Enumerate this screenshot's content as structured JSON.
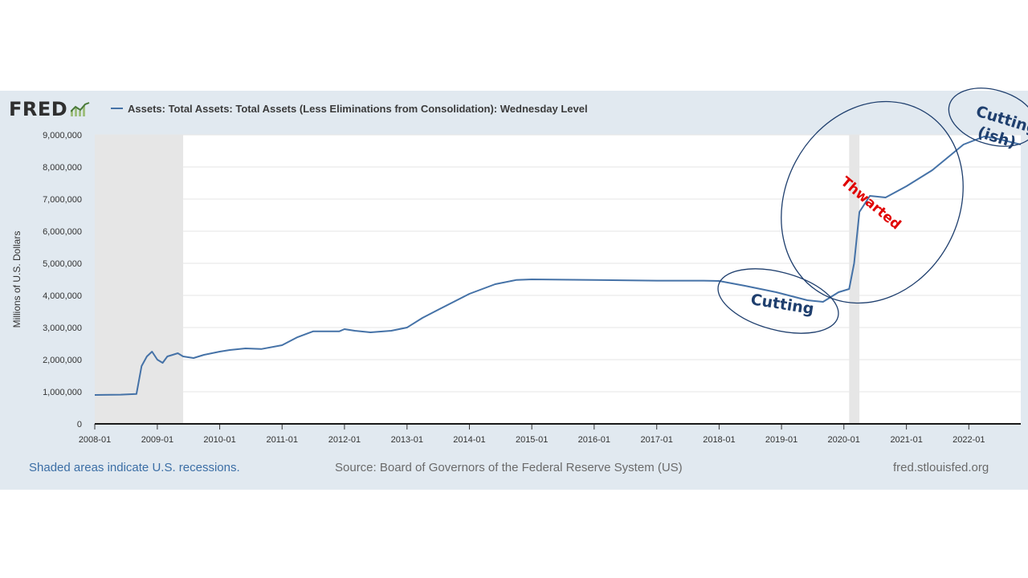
{
  "logo": {
    "text": "FRED"
  },
  "legend": {
    "label": "Assets: Total Assets: Total Assets (Less Eliminations from Consolidation): Wednesday Level"
  },
  "footer": {
    "recession_note": "Shaded areas indicate U.S. recessions.",
    "source": "Source: Board of Governors of the Federal Reserve System (US)",
    "site": "fred.stlouisfed.org"
  },
  "colors": {
    "line": "#4572a7",
    "panel": "#e1e9f0",
    "recession": "#e6e6e6",
    "annotation_blue": "#1f3f6e",
    "annotation_red": "#e00000"
  },
  "chart_data": {
    "type": "line",
    "title": "",
    "xlabel": "",
    "ylabel": "Millions of U.S. Dollars",
    "x_tick_labels": [
      "2008-01",
      "2009-01",
      "2010-01",
      "2011-01",
      "2012-01",
      "2013-01",
      "2014-01",
      "2015-01",
      "2016-01",
      "2017-01",
      "2018-01",
      "2019-01",
      "2020-01",
      "2021-01",
      "2022-01"
    ],
    "y_tick_labels": [
      "0",
      "1,000,000",
      "2,000,000",
      "3,000,000",
      "4,000,000",
      "5,000,000",
      "6,000,000",
      "7,000,000",
      "8,000,000",
      "9,000,000"
    ],
    "y_ticks": [
      0,
      1000000,
      2000000,
      3000000,
      4000000,
      5000000,
      6000000,
      7000000,
      8000000,
      9000000
    ],
    "xlim": [
      "2008-01-01",
      "2022-11-01"
    ],
    "ylim": [
      0,
      9000000
    ],
    "grid": "horizontal",
    "recessions": [
      {
        "start": "2008-01-01",
        "end": "2009-06-01"
      },
      {
        "start": "2020-02-01",
        "end": "2020-04-01"
      }
    ],
    "series": [
      {
        "name": "Assets: Total Assets: Total Assets (Less Eliminations from Consolidation): Wednesday Level",
        "x": [
          "2008-01-01",
          "2008-06-01",
          "2008-09-01",
          "2008-10-01",
          "2008-11-01",
          "2008-12-01",
          "2009-01-01",
          "2009-02-01",
          "2009-03-01",
          "2009-04-01",
          "2009-05-01",
          "2009-06-01",
          "2009-08-01",
          "2009-10-01",
          "2010-01-01",
          "2010-03-01",
          "2010-06-01",
          "2010-09-01",
          "2011-01-01",
          "2011-04-01",
          "2011-07-01",
          "2011-12-01",
          "2012-01-01",
          "2012-03-01",
          "2012-06-01",
          "2012-10-01",
          "2013-01-01",
          "2013-04-01",
          "2013-07-01",
          "2014-01-01",
          "2014-06-01",
          "2014-10-01",
          "2015-01-01",
          "2016-01-01",
          "2017-01-01",
          "2017-10-01",
          "2018-01-01",
          "2018-06-01",
          "2018-12-01",
          "2019-06-01",
          "2019-09-01",
          "2019-12-01",
          "2020-02-01",
          "2020-03-01",
          "2020-04-01",
          "2020-06-01",
          "2020-09-01",
          "2021-01-01",
          "2021-06-01",
          "2021-12-01",
          "2022-04-01",
          "2022-06-01",
          "2022-11-01"
        ],
        "y": [
          900000,
          910000,
          930000,
          1800000,
          2100000,
          2250000,
          2000000,
          1900000,
          2100000,
          2150000,
          2200000,
          2100000,
          2050000,
          2150000,
          2250000,
          2300000,
          2350000,
          2330000,
          2450000,
          2700000,
          2880000,
          2880000,
          2950000,
          2900000,
          2850000,
          2900000,
          3000000,
          3300000,
          3550000,
          4050000,
          4350000,
          4480000,
          4500000,
          4480000,
          4460000,
          4460000,
          4450000,
          4300000,
          4100000,
          3850000,
          3800000,
          4100000,
          4200000,
          5000000,
          6600000,
          7100000,
          7050000,
          7400000,
          7900000,
          8700000,
          8950000,
          8900000,
          8700000
        ]
      }
    ],
    "annotations": [
      {
        "text": "Cutting",
        "color": "#1f3f6e"
      },
      {
        "text": "Thwarted",
        "color": "#e00000"
      },
      {
        "text": "Cutting (ish)",
        "color": "#1f3f6e"
      }
    ]
  }
}
